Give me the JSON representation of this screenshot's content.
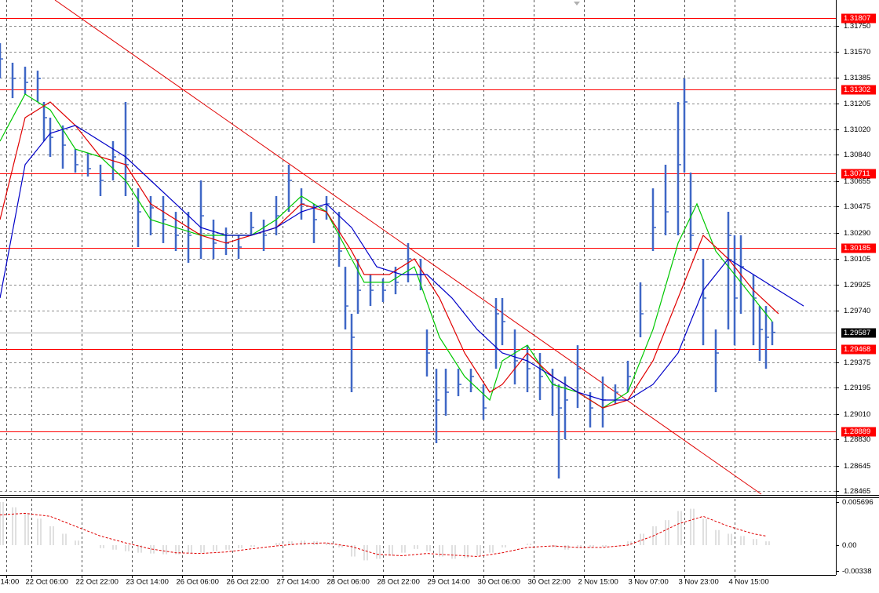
{
  "chart_data": [
    {
      "type": "ohlc",
      "xlim": [
        0,
        133
      ],
      "xticks": [
        {
          "value": 1,
          "label": "14:00"
        },
        {
          "value": 5,
          "label": "22 Oct 06:00"
        },
        {
          "value": 13,
          "label": "22 Oct 22:00"
        },
        {
          "value": 21,
          "label": "23 Oct 14:00"
        },
        {
          "value": 29,
          "label": "26 Oct 06:00"
        },
        {
          "value": 37,
          "label": "26 Oct 22:00"
        },
        {
          "value": 45,
          "label": "27 Oct 14:00"
        },
        {
          "value": 53,
          "label": "28 Oct 06:00"
        },
        {
          "value": 61,
          "label": "28 Oct 22:00"
        },
        {
          "value": 69,
          "label": "29 Oct 14:00"
        },
        {
          "value": 77,
          "label": "30 Oct 06:00"
        },
        {
          "value": 85,
          "label": "30 Oct 22:00"
        },
        {
          "value": 93,
          "label": "2 Nov 15:00"
        },
        {
          "value": 101,
          "label": "3 Nov 07:00"
        },
        {
          "value": 109,
          "label": "3 Nov 23:00"
        },
        {
          "value": 117,
          "label": "4 Nov 15:00"
        }
      ],
      "ylim": [
        1.28444,
        1.31934
      ],
      "yticks": [
        {
          "value": 1.3175,
          "label": "1.31750"
        },
        {
          "value": 1.3157,
          "label": "1.31570"
        },
        1.31385,
        1.31205,
        {
          "value": 1.3102,
          "label": "1.31020"
        },
        {
          "value": 1.3084,
          "label": "1.30840"
        },
        1.30655,
        1.30475,
        {
          "value": 1.3029,
          "label": "1.30290"
        },
        1.30105,
        1.29925,
        {
          "value": 1.2974,
          "label": "1.29740"
        },
        1.29375,
        1.29195,
        {
          "value": 1.2901,
          "label": "1.29010"
        },
        {
          "value": 1.2883,
          "label": "1.28830"
        },
        1.28645,
        1.28465
      ],
      "grid": true,
      "color": "#3f67c6",
      "x": [
        0,
        2,
        4,
        6,
        7,
        8,
        10,
        12,
        14,
        16,
        18,
        20,
        22,
        24,
        26,
        28,
        30,
        32,
        34,
        36,
        38,
        40,
        42,
        44,
        46,
        48,
        50,
        52,
        54,
        55,
        56,
        57,
        59,
        61,
        63,
        65,
        67,
        68,
        69.5,
        71,
        73,
        75,
        77,
        79,
        80,
        82,
        84,
        86,
        88,
        89,
        90,
        92,
        94,
        96,
        98,
        100,
        102,
        104,
        106,
        108,
        109,
        110,
        112,
        114,
        116,
        117,
        118,
        120,
        121,
        122,
        123
      ],
      "high": [
        1.31629,
        1.31491,
        1.31463,
        1.31435,
        1.31214,
        1.31103,
        1.31048,
        1.30881,
        1.30854,
        1.30771,
        1.30937,
        1.31214,
        1.30604,
        1.30549,
        1.30549,
        1.30438,
        1.30438,
        1.3066,
        1.30383,
        1.30327,
        1.30272,
        1.30438,
        1.30383,
        1.30549,
        1.30771,
        1.30604,
        1.30494,
        1.30549,
        1.30438,
        1.3005,
        1.29718,
        1.30106,
        1.29995,
        1.29967,
        1.3005,
        1.30217,
        1.30106,
        1.29607,
        1.2933,
        1.2933,
        1.2933,
        1.2933,
        1.29219,
        1.29829,
        1.29829,
        1.29607,
        1.29496,
        1.29441,
        1.2933,
        1.29219,
        1.29275,
        1.29496,
        1.29164,
        1.29275,
        1.29219,
        1.29386,
        1.2994,
        1.30604,
        1.30771,
        1.31214,
        1.3138,
        1.30715,
        1.30106,
        1.29607,
        1.30438,
        1.30272,
        1.30272,
        1.29995,
        1.29773,
        1.29773,
        1.29663
      ],
      "low": [
        1.3138,
        1.31241,
        1.31269,
        1.31214,
        1.30937,
        1.30826,
        1.30743,
        1.30715,
        1.30687,
        1.30549,
        1.3066,
        1.30549,
        1.30189,
        1.30272,
        1.30217,
        1.30161,
        1.30078,
        1.30106,
        1.30106,
        1.30133,
        1.30106,
        1.30272,
        1.30161,
        1.30272,
        1.30438,
        1.30383,
        1.30217,
        1.30383,
        1.3005,
        1.29607,
        1.29164,
        1.29718,
        1.29773,
        1.29801,
        1.29856,
        1.2994,
        1.29884,
        1.29275,
        1.28804,
        1.28998,
        1.29136,
        1.29164,
        1.2897,
        1.2933,
        1.29496,
        1.29219,
        1.29164,
        1.29109,
        1.28998,
        1.28555,
        1.28832,
        1.29053,
        1.28915,
        1.28915,
        1.29081,
        1.29164,
        1.29552,
        1.30161,
        1.30272,
        1.30272,
        1.30715,
        1.30161,
        1.29496,
        1.29164,
        1.29607,
        1.29496,
        1.29718,
        1.29496,
        1.29386,
        1.2933,
        1.29496
      ],
      "close": [
        1.31518,
        1.3138,
        1.31352,
        1.3138,
        1.31103,
        1.30964,
        1.30909,
        1.30771,
        1.30743,
        1.3066,
        1.30826,
        1.30771,
        1.30438,
        1.30466,
        1.30383,
        1.30272,
        1.30272,
        1.3041,
        1.30217,
        1.30217,
        1.30189,
        1.30327,
        1.30272,
        1.3041,
        1.3066,
        1.30494,
        1.30383,
        1.30494,
        1.30161,
        1.29773,
        1.29552,
        1.29884,
        1.29884,
        1.29884,
        1.2994,
        1.30106,
        1.29995,
        1.29441,
        1.29109,
        1.29164,
        1.29219,
        1.29275,
        1.29053,
        1.29718,
        1.29663,
        1.29386,
        1.2933,
        1.29275,
        1.29219,
        1.29053,
        1.29109,
        1.2933,
        1.29053,
        1.29109,
        1.29164,
        1.29275,
        1.29718,
        1.30327,
        1.30438,
        1.30771,
        1.31214,
        1.30272,
        1.29829,
        1.29441,
        1.30272,
        1.29829,
        1.3005,
        1.29829,
        1.29607,
        1.29552,
        1.29587
      ],
      "series": [
        {
          "color": "#00c800",
          "x": [
            0,
            4,
            8,
            12,
            16,
            20,
            24,
            28,
            32,
            36,
            40,
            44,
            48,
            52,
            56,
            58,
            62,
            66,
            70,
            74,
            78,
            80,
            84,
            88,
            92,
            96,
            100,
            104,
            108,
            111,
            114,
            118,
            121,
            123
          ],
          "values": [
            1.30937,
            1.31269,
            1.31158,
            1.30881,
            1.30826,
            1.3066,
            1.30383,
            1.30327,
            1.30272,
            1.30272,
            1.30272,
            1.30383,
            1.30549,
            1.30438,
            1.30106,
            1.2994,
            1.2994,
            1.3005,
            1.29552,
            1.29275,
            1.29109,
            1.29386,
            1.29496,
            1.29219,
            1.29164,
            1.29053,
            1.29164,
            1.29607,
            1.30217,
            1.30494,
            1.30161,
            1.2994,
            1.29773,
            1.29663
          ]
        },
        {
          "color": "#e00000",
          "x": [
            0,
            4,
            8,
            12,
            16,
            20,
            24,
            28,
            32,
            36,
            40,
            44,
            48,
            52,
            56,
            58,
            62,
            66,
            70,
            74,
            78,
            80,
            84,
            88,
            92,
            96,
            100,
            104,
            108,
            112,
            116,
            120,
            124
          ],
          "values": [
            1.30383,
            1.31103,
            1.31214,
            1.31048,
            1.30826,
            1.30771,
            1.30494,
            1.30383,
            1.30272,
            1.30217,
            1.30272,
            1.30327,
            1.30494,
            1.30438,
            1.30161,
            1.29995,
            1.29995,
            1.30106,
            1.29829,
            1.29441,
            1.29164,
            1.29219,
            1.29441,
            1.29275,
            1.29164,
            1.29053,
            1.29109,
            1.29386,
            1.29829,
            1.30272,
            1.30106,
            1.29884,
            1.29718
          ]
        },
        {
          "color": "#0000c8",
          "x": [
            0,
            4,
            8,
            12,
            16,
            20,
            24,
            28,
            32,
            36,
            40,
            44,
            48,
            52,
            56,
            60,
            64,
            68,
            72,
            76,
            80,
            84,
            88,
            92,
            96,
            100,
            104,
            108,
            112,
            116,
            120,
            124,
            128
          ],
          "values": [
            1.29829,
            1.30771,
            1.30992,
            1.31048,
            1.30937,
            1.30826,
            1.3066,
            1.30494,
            1.30327,
            1.30272,
            1.30272,
            1.30327,
            1.30438,
            1.30494,
            1.30327,
            1.3005,
            1.29995,
            1.29995,
            1.29829,
            1.29607,
            1.29441,
            1.29386,
            1.29275,
            1.29164,
            1.29109,
            1.29109,
            1.29219,
            1.29441,
            1.29884,
            1.30106,
            1.29995,
            1.29884,
            1.29773
          ]
        }
      ],
      "trendline": {
        "color": "#e00000",
        "x": [
          8.75,
          121.25
        ],
        "values": [
          1.31934,
          1.28444
        ]
      },
      "levels": {
        "color": "#ff0000",
        "values": [
          1.31807,
          1.31302,
          1.30711,
          1.30185,
          1.29468,
          1.28889
        ]
      },
      "current_price": {
        "color": "#000000",
        "value": 1.29587
      }
    },
    {
      "type": "oscillator",
      "ylim": [
        -0.00383,
        0.00611
      ],
      "yticks": [
        0.005696,
        {
          "value": 0,
          "label": "0.00"
        },
        -0.00338
      ],
      "color": "#c0c0c0",
      "x": [
        0,
        2,
        4,
        6,
        8,
        10,
        12,
        14,
        16,
        18,
        20,
        22,
        24,
        26,
        28,
        30,
        32,
        34,
        36,
        38,
        40,
        42,
        44,
        46,
        48,
        50,
        52,
        54,
        56,
        58,
        60,
        62,
        64,
        66,
        68,
        70,
        72,
        74,
        76,
        78,
        80,
        82,
        84,
        86,
        88,
        90,
        92,
        94,
        96,
        98,
        100,
        102,
        104,
        106,
        108,
        110,
        112,
        114,
        116,
        118,
        120,
        122
      ],
      "values": [
        0.0057,
        0.005,
        0.0042,
        0.0035,
        0.0025,
        0.0015,
        0.0006,
        0,
        -0.0004,
        -0.0006,
        -0.0008,
        -0.001,
        -0.0011,
        -0.0012,
        -0.0012,
        -0.0011,
        -0.001,
        -0.0008,
        -0.0006,
        -0.0004,
        -0.0002,
        0,
        0.0003,
        0.0005,
        0.0006,
        0.0005,
        0.0003,
        -0.0003,
        -0.0015,
        -0.002,
        -0.0018,
        -0.0014,
        -0.001,
        -0.0005,
        -0.0008,
        -0.0015,
        -0.0018,
        -0.0017,
        -0.0014,
        -0.001,
        -0.0003,
        0,
        0.0002,
        0,
        -0.0003,
        -0.0006,
        -0.0004,
        -0.0003,
        -0.0002,
        0,
        0.0005,
        0.0015,
        0.0025,
        0.0033,
        0.0045,
        0.0048,
        0.0035,
        0.002,
        0.0015,
        0.0012,
        0.0008,
        0.0005
      ],
      "signal": {
        "color": "#e00000",
        "x": [
          0,
          4,
          8,
          12,
          16,
          20,
          24,
          28,
          32,
          36,
          40,
          44,
          48,
          52,
          56,
          60,
          64,
          68,
          72,
          76,
          80,
          84,
          88,
          92,
          96,
          100,
          104,
          108,
          112,
          116,
          120,
          122
        ],
        "values": [
          0.004,
          0.0042,
          0.0038,
          0.0025,
          0.0012,
          0.0003,
          -0.0005,
          -0.001,
          -0.0011,
          -0.0009,
          -0.0005,
          -0.0001,
          0.0002,
          0.0003,
          -0.0002,
          -0.0012,
          -0.0014,
          -0.0011,
          -0.0013,
          -0.0015,
          -0.001,
          -0.0003,
          -0.0001,
          -0.0003,
          -0.0003,
          0,
          0.0012,
          0.0028,
          0.0038,
          0.0025,
          0.0015,
          0.0012
        ]
      }
    }
  ]
}
